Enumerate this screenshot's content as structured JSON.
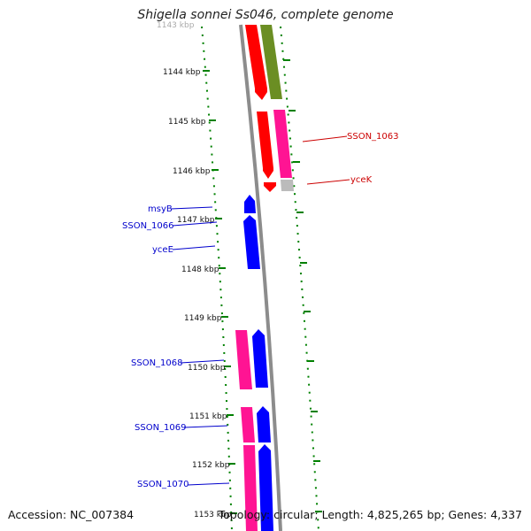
{
  "title": "Shigella sonnei Ss046, complete genome",
  "footer": {
    "accession": "Accession: NC_007384",
    "summary": "Topology: circular; Length: 4,825,265 bp; Genes: 4,337"
  },
  "colors": {
    "red": "#ff0000",
    "olive": "#6b8e23",
    "pink": "#ff1493",
    "blue": "#0000ff",
    "grey": "#bbbbbb",
    "backbone": "#8c8c8c",
    "ruler": "#008000",
    "label_red": "#cc0000",
    "label_blue": "#0000cc"
  },
  "ruler": {
    "cut_off_label": "1143 kbp",
    "ticks": [
      "1144 kbp",
      "1145 kbp",
      "1146 kbp",
      "1147 kbp",
      "1148 kbp",
      "1149 kbp",
      "1150 kbp",
      "1151 kbp",
      "1152 kbp",
      "1153 kbp"
    ]
  },
  "gene_labels": [
    {
      "name": "SSON_1063",
      "color": "label_red"
    },
    {
      "name": "yceK",
      "color": "label_red"
    },
    {
      "name": "msyB",
      "color": "label_blue"
    },
    {
      "name": "SSON_1066",
      "color": "label_blue"
    },
    {
      "name": "yceE",
      "color": "label_blue"
    },
    {
      "name": "SSON_1068",
      "color": "label_blue"
    },
    {
      "name": "SSON_1069",
      "color": "label_blue"
    },
    {
      "name": "SSON_1070",
      "color": "label_blue"
    }
  ]
}
